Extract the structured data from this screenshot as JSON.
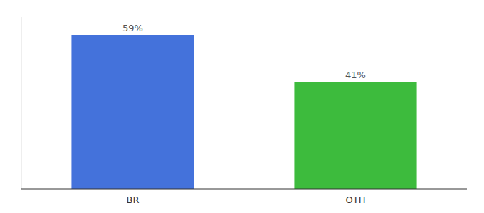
{
  "chart_data": {
    "type": "bar",
    "categories": [
      "BR",
      "OTH"
    ],
    "values": [
      59,
      41
    ],
    "value_labels": [
      "59%",
      "41%"
    ],
    "colors": [
      "#4472db",
      "#3dbb3d"
    ],
    "ylim": [
      0,
      66
    ],
    "tick_labels": "x"
  }
}
